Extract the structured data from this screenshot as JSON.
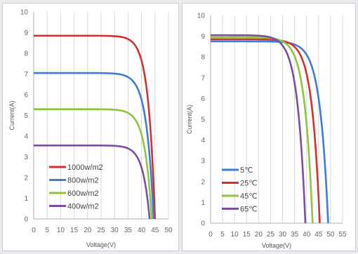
{
  "chart_data": [
    {
      "type": "line",
      "title": "",
      "xlabel": "Voltage(V)",
      "ylabel": "Current(A)",
      "xlim": [
        0,
        50
      ],
      "ylim": [
        0,
        10
      ],
      "xticks": [
        "0",
        "5",
        "10",
        "15",
        "20",
        "25",
        "30",
        "35",
        "40",
        "45",
        "50"
      ],
      "yticks": [
        "0",
        "1",
        "2",
        "3",
        "4",
        "5",
        "6",
        "7",
        "8",
        "9",
        "10"
      ],
      "grid": "vertical",
      "legend_position": "bottom-left",
      "series": [
        {
          "name": "1000w/m2",
          "color": "#d2322d",
          "isc": 8.85,
          "voc": 45.0,
          "knee": 37.0,
          "x": [
            0,
            35,
            45
          ],
          "y": [
            8.85,
            8.7,
            0
          ]
        },
        {
          "name": "800w/m2",
          "color": "#3c7dd9",
          "isc": 7.05,
          "voc": 44.5,
          "knee": 36.0,
          "x": [
            0,
            35,
            44.5
          ],
          "y": [
            7.05,
            6.95,
            0
          ]
        },
        {
          "name": "600w/m2",
          "color": "#8cc63e",
          "isc": 5.3,
          "voc": 43.8,
          "knee": 35.5,
          "x": [
            0,
            35,
            43.8
          ],
          "y": [
            5.3,
            5.2,
            0
          ]
        },
        {
          "name": "400w/m2",
          "color": "#7a4ea3",
          "isc": 3.55,
          "voc": 43.0,
          "knee": 35.0,
          "x": [
            0,
            35,
            43
          ],
          "y": [
            3.55,
            3.45,
            0
          ]
        }
      ]
    },
    {
      "type": "line",
      "title": "",
      "xlabel": "Voltage(V)",
      "ylabel": "Current(A)",
      "xlim": [
        0,
        55
      ],
      "ylim": [
        0,
        10
      ],
      "xticks": [
        "0",
        "5",
        "10",
        "15",
        "20",
        "25",
        "30",
        "35",
        "40",
        "45",
        "50",
        "55"
      ],
      "yticks": [
        "0",
        "1",
        "2",
        "3",
        "4",
        "5",
        "6",
        "7",
        "8",
        "9",
        "10"
      ],
      "grid": "vertical",
      "legend_position": "bottom-left",
      "series": [
        {
          "name": "5℃",
          "color": "#3c7dd9",
          "isc": 8.75,
          "voc": 49.0,
          "knee": 38.0,
          "x": [
            0,
            35,
            49
          ],
          "y": [
            8.75,
            8.7,
            0
          ]
        },
        {
          "name": "25℃",
          "color": "#d2322d",
          "isc": 8.85,
          "voc": 45.5,
          "knee": 35.0,
          "x": [
            0,
            33,
            45.5
          ],
          "y": [
            8.85,
            8.8,
            0
          ]
        },
        {
          "name": "45℃",
          "color": "#8cc63e",
          "isc": 8.95,
          "voc": 42.5,
          "knee": 32.0,
          "x": [
            0,
            31,
            42.5
          ],
          "y": [
            8.95,
            8.85,
            0
          ]
        },
        {
          "name": "65℃",
          "color": "#7a4ea3",
          "isc": 9.05,
          "voc": 39.5,
          "knee": 29.0,
          "x": [
            0,
            28,
            39.5
          ],
          "y": [
            9.05,
            8.9,
            0
          ]
        }
      ]
    }
  ]
}
